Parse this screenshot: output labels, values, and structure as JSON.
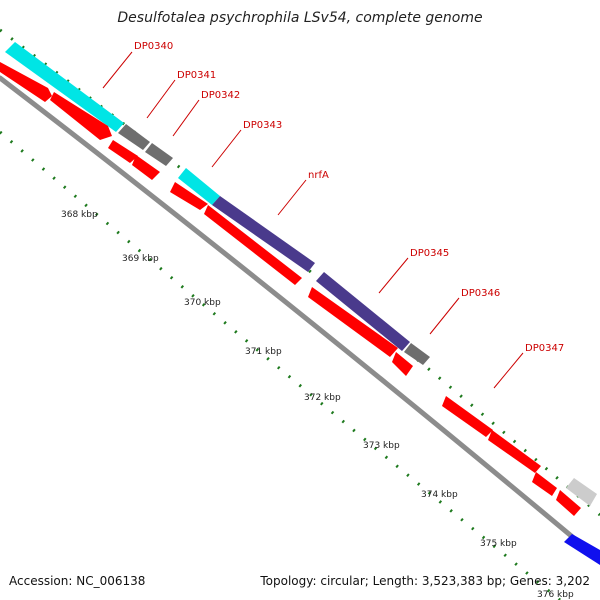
{
  "header": {
    "title": "Desulfotalea psychrophila LSv54, complete genome"
  },
  "footer": {
    "accession": "Accession: NC_006138",
    "summary": "Topology: circular; Length: 3,523,383 bp; Genes: 3,202"
  },
  "gene_labels": [
    "DP0340",
    "DP0341",
    "DP0342",
    "DP0343",
    "nrfA",
    "DP0345",
    "DP0346",
    "DP0347"
  ],
  "kbp_labels": [
    "368 kbp",
    "369 kbp",
    "370 kbp",
    "371 kbp",
    "372 kbp",
    "373 kbp",
    "374 kbp",
    "375 kbp",
    "376 kbp"
  ],
  "colors": {
    "cds_forward": "#ff0000",
    "rna_cyan": "#00e5e5",
    "blast_purple": "#4a3a8c",
    "gray_feature": "#777777",
    "light_gray_feature": "#cccccc",
    "blue_feature": "#1010ee",
    "backbone": "#999999",
    "ticks": "#1e7a1e",
    "label_red": "#cc0000"
  }
}
